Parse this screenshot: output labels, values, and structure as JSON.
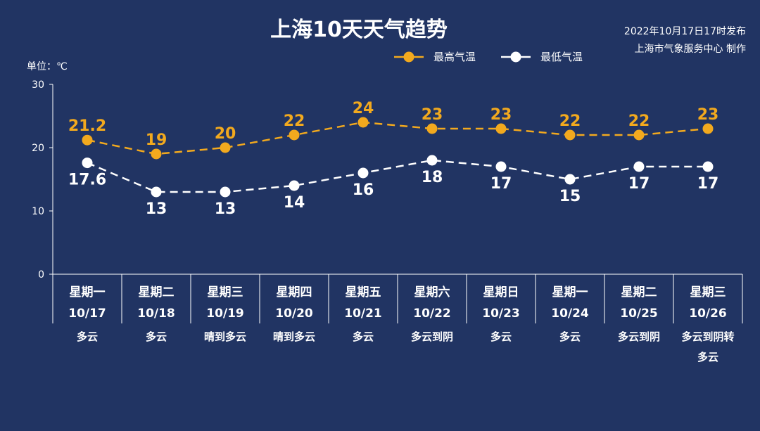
{
  "header": {
    "publish_time": "2022年10月17日17时发布",
    "producer": "上海市气象服务中心 制作"
  },
  "chart_data": {
    "type": "line",
    "title": "上海10天天气趋势",
    "unit_label": "单位：℃",
    "ylim": [
      0,
      30
    ],
    "yticks": [
      0,
      10,
      20,
      30
    ],
    "ytick_labels": [
      "0",
      "10",
      "20",
      "30"
    ],
    "grid": false,
    "legend_position": "top-center",
    "weekdays": [
      "星期一",
      "星期二",
      "星期三",
      "星期四",
      "星期五",
      "星期六",
      "星期日",
      "星期一",
      "星期二",
      "星期三"
    ],
    "categories": [
      "10/17",
      "10/18",
      "10/19",
      "10/20",
      "10/21",
      "10/22",
      "10/23",
      "10/24",
      "10/25",
      "10/26"
    ],
    "conditions": [
      [
        "多云"
      ],
      [
        "多云"
      ],
      [
        "晴到多云"
      ],
      [
        "晴到多云"
      ],
      [
        "多云"
      ],
      [
        "多云到阴"
      ],
      [
        "多云"
      ],
      [
        "多云"
      ],
      [
        "多云到阴"
      ],
      [
        "多云到阴转",
        "多云"
      ]
    ],
    "series": [
      {
        "name": "最高气温",
        "color": "#f2a91e",
        "values": [
          21.2,
          19,
          20,
          22,
          24,
          23,
          23,
          22,
          22,
          23
        ],
        "labels": [
          "21.2",
          "19",
          "20",
          "22",
          "24",
          "23",
          "23",
          "22",
          "22",
          "23"
        ],
        "label_position": "above"
      },
      {
        "name": "最低气温",
        "color": "#ffffff",
        "values": [
          17.6,
          13,
          13,
          14,
          16,
          18,
          17,
          15,
          17,
          17
        ],
        "labels": [
          "17.6",
          "13",
          "13",
          "14",
          "16",
          "18",
          "17",
          "15",
          "17",
          "17"
        ],
        "label_position": "below"
      }
    ]
  }
}
